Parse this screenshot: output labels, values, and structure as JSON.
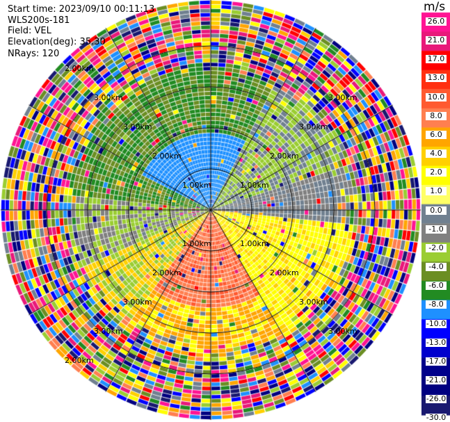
{
  "header": {
    "start_time": "Start time: 2023/09/10 00:11:13",
    "instrument": "WLS200s-181",
    "field": "Field: VEL",
    "elevation": "Elevation(deg): 35.30",
    "nrays": "NRays: 120"
  },
  "colorbar": {
    "unit": "m/s",
    "ticks": [
      "26.0",
      "21.0",
      "17.0",
      "13.0",
      "10.0",
      "8.0",
      "6.0",
      "4.0",
      "2.0",
      "1.0",
      "0.0",
      "-1.0",
      "-2.0",
      "-4.0",
      "-6.0",
      "-8.0",
      "-10.0",
      "-13.0",
      "-17.0",
      "-21.0",
      "-26.0",
      "-30.0"
    ],
    "colors": [
      "#ff1493",
      "#e8197a",
      "#ff0000",
      "#ff3010",
      "#ff5a30",
      "#ff7f50",
      "#ffa500",
      "#ffd000",
      "#ffff00",
      "#ffff66",
      "#708090",
      "#808080",
      "#9acd32",
      "#6b8e23",
      "#228b22",
      "#1e90ff",
      "#0000ff",
      "#0000cd",
      "#00008b",
      "#000080",
      "#191970"
    ]
  },
  "range_rings": {
    "labels": [
      "1.00km",
      "2.00km",
      "3.00km",
      "2.00km"
    ]
  }
}
